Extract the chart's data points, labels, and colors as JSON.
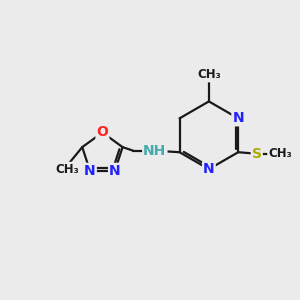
{
  "bg_color": "#ebebeb",
  "atom_colors": {
    "N": "#2222ff",
    "O": "#ff2222",
    "S": "#aaaa00",
    "NH": "#44aaaa"
  },
  "bond_color": "#1a1a1a",
  "bond_width": 1.6,
  "dbo": 0.08,
  "font_size_atom": 10,
  "figsize": [
    3.0,
    3.0
  ],
  "dpi": 100,
  "xlim": [
    0,
    10
  ],
  "ylim": [
    0,
    10
  ]
}
